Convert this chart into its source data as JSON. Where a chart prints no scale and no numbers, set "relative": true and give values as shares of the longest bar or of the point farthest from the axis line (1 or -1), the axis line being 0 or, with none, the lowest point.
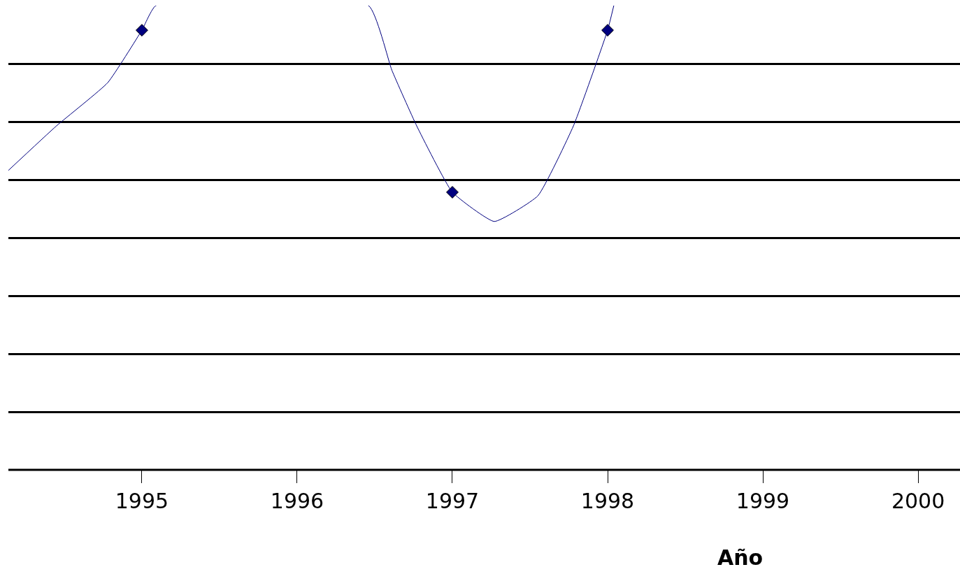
{
  "chart_data": {
    "type": "scatter",
    "xlabel": "Año",
    "relative": true,
    "grid": "y",
    "marker": "diamond",
    "xlim": [
      1994.14,
      2000.27
    ],
    "xticks": [
      1995,
      1996,
      1997,
      1998,
      1999,
      2000
    ],
    "series": [
      {
        "color": "#000080",
        "x": [
          1995,
          1997,
          1998
        ],
        "values": [
          0.947,
          0.598,
          0.947
        ]
      },
      {
        "type": "line",
        "color": "#000080",
        "marker": "none",
        "x": [
          1994.14,
          1994.45,
          1994.78,
          1995,
          1995.09,
          1996.46,
          1996.61,
          1996.77,
          1997,
          1997.27,
          1997.55,
          1997.78,
          1998,
          1998.04
        ],
        "values": [
          0.645,
          0.741,
          0.834,
          0.947,
          1.0,
          1.0,
          0.861,
          0.741,
          0.598,
          0.535,
          0.59,
          0.741,
          0.947,
          1.0
        ]
      }
    ]
  }
}
